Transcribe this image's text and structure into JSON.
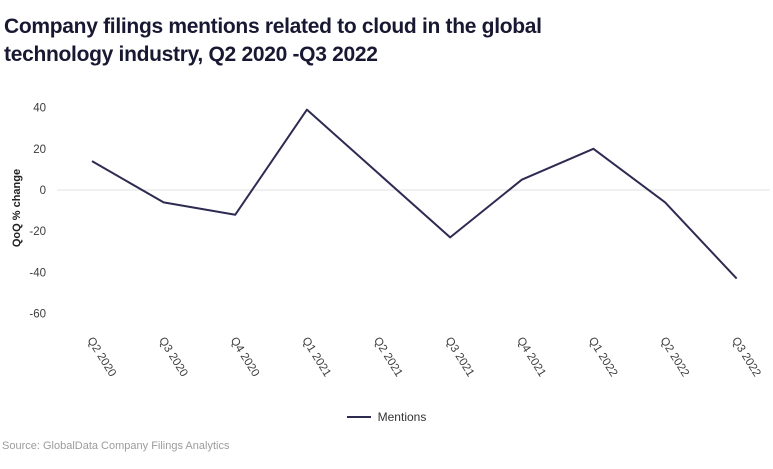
{
  "header": {
    "title_line1": "Company filings mentions related to cloud in the global",
    "title_line2": "technology industry, Q2 2020 -Q3 2022"
  },
  "chart_data": {
    "type": "line",
    "title": "Company filings mentions related to cloud in the global technology industry, Q2 2020 -Q3 2022",
    "categories": [
      "Q2 2020",
      "Q3 2020",
      "Q4 2020",
      "Q1 2021",
      "Q2 2021",
      "Q3 2021",
      "Q4 2021",
      "Q1 2022",
      "Q2 2022",
      "Q3 2022"
    ],
    "series": [
      {
        "name": "Mentions",
        "values": [
          14,
          -6,
          -12,
          39,
          8,
          -23,
          5,
          20,
          -6,
          -43
        ]
      }
    ],
    "xlabel": "",
    "ylabel": "QoQ % change",
    "yticks": [
      40,
      20,
      0,
      -20,
      -40,
      -60
    ],
    "ylim": [
      -60,
      40
    ],
    "grid": "zero-line-only",
    "legend_position": "bottom-center",
    "x_tick_rotation_deg": 58,
    "line_color": "#2e2b52",
    "grid_color": "#e0e0e0",
    "axis_text_color": "#3d3d3d"
  },
  "source": {
    "text": "Source: GlobalData Company Filings Analytics"
  }
}
